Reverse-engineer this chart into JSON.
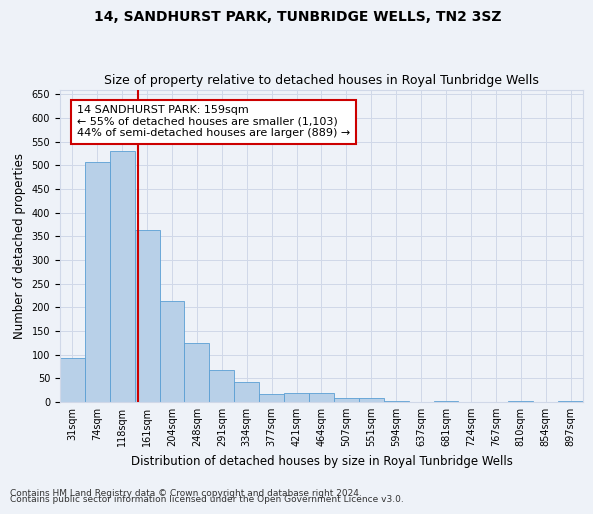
{
  "title": "14, SANDHURST PARK, TUNBRIDGE WELLS, TN2 3SZ",
  "subtitle": "Size of property relative to detached houses in Royal Tunbridge Wells",
  "xlabel": "Distribution of detached houses by size in Royal Tunbridge Wells",
  "ylabel": "Number of detached properties",
  "footer1": "Contains HM Land Registry data © Crown copyright and database right 2024.",
  "footer2": "Contains public sector information licensed under the Open Government Licence v3.0.",
  "bar_labels": [
    "31sqm",
    "74sqm",
    "118sqm",
    "161sqm",
    "204sqm",
    "248sqm",
    "291sqm",
    "334sqm",
    "377sqm",
    "421sqm",
    "464sqm",
    "507sqm",
    "551sqm",
    "594sqm",
    "637sqm",
    "681sqm",
    "724sqm",
    "767sqm",
    "810sqm",
    "854sqm",
    "897sqm"
  ],
  "bar_values": [
    93,
    507,
    530,
    363,
    213,
    125,
    68,
    42,
    17,
    19,
    19,
    9,
    9,
    3,
    0,
    3,
    0,
    0,
    3,
    0,
    3
  ],
  "bar_color": "#b8d0e8",
  "bar_edge_color": "#5a9fd4",
  "grid_color": "#d0d8e8",
  "annotation_text": "14 SANDHURST PARK: 159sqm\n← 55% of detached houses are smaller (1,103)\n44% of semi-detached houses are larger (889) →",
  "annotation_box_color": "#ffffff",
  "annotation_box_edge": "#cc0000",
  "vline_x": 2.62,
  "vline_color": "#cc0000",
  "ylim": [
    0,
    660
  ],
  "yticks": [
    0,
    50,
    100,
    150,
    200,
    250,
    300,
    350,
    400,
    450,
    500,
    550,
    600,
    650
  ],
  "background_color": "#eef2f8",
  "title_fontsize": 10,
  "subtitle_fontsize": 9,
  "xlabel_fontsize": 8.5,
  "ylabel_fontsize": 8.5,
  "tick_fontsize": 7,
  "annotation_fontsize": 8,
  "footer_fontsize": 6.5
}
